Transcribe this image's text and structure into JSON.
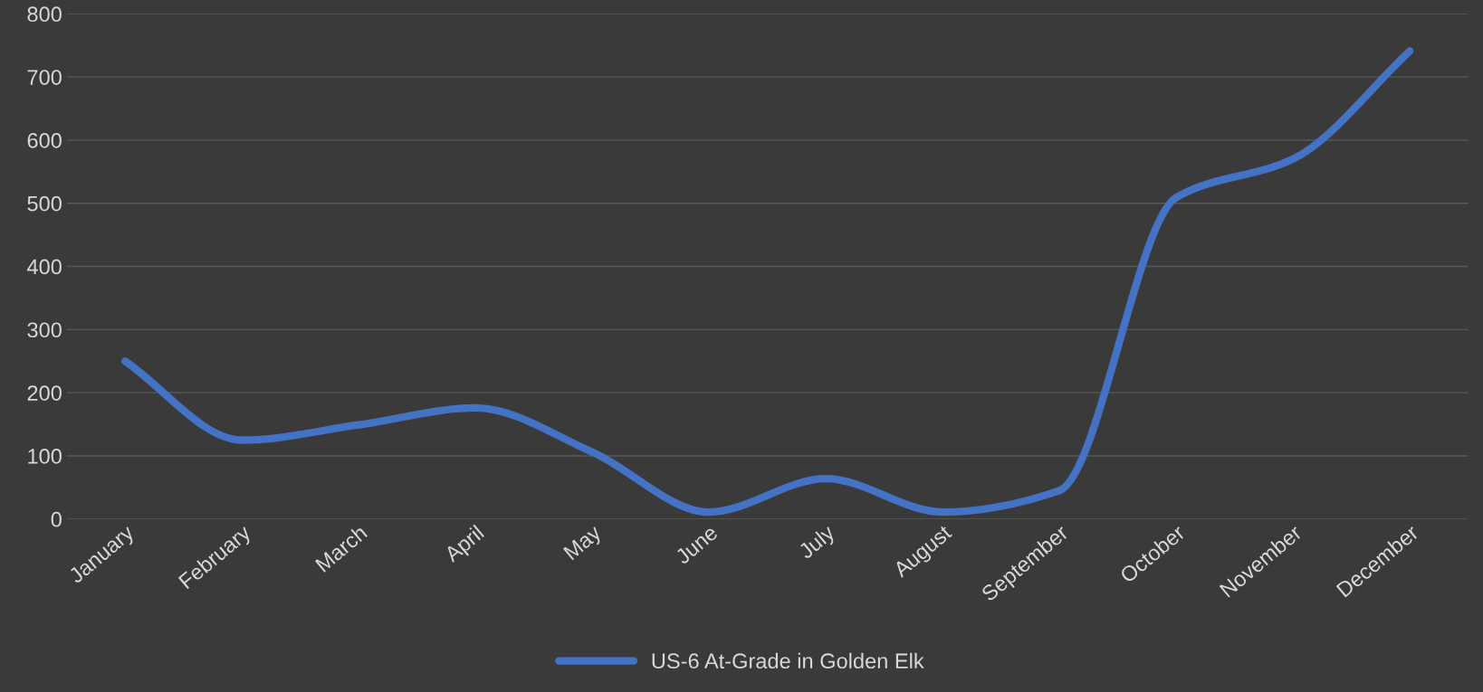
{
  "chart_data": {
    "type": "line",
    "categories": [
      "January",
      "February",
      "March",
      "April",
      "May",
      "June",
      "July",
      "August",
      "September",
      "October",
      "November",
      "December"
    ],
    "series": [
      {
        "name": "US-6 At-Grade in Golden Elk",
        "color": "#4472c4",
        "values": [
          250,
          125,
          149,
          176,
          106,
          11,
          64,
          11,
          45,
          509,
          570,
          741
        ]
      }
    ],
    "ylim": [
      0,
      800
    ],
    "yticks": [
      0,
      100,
      200,
      300,
      400,
      500,
      600,
      700,
      800
    ],
    "grid": "y",
    "legend": "bottom",
    "marker": "none",
    "line_style": "solid"
  }
}
